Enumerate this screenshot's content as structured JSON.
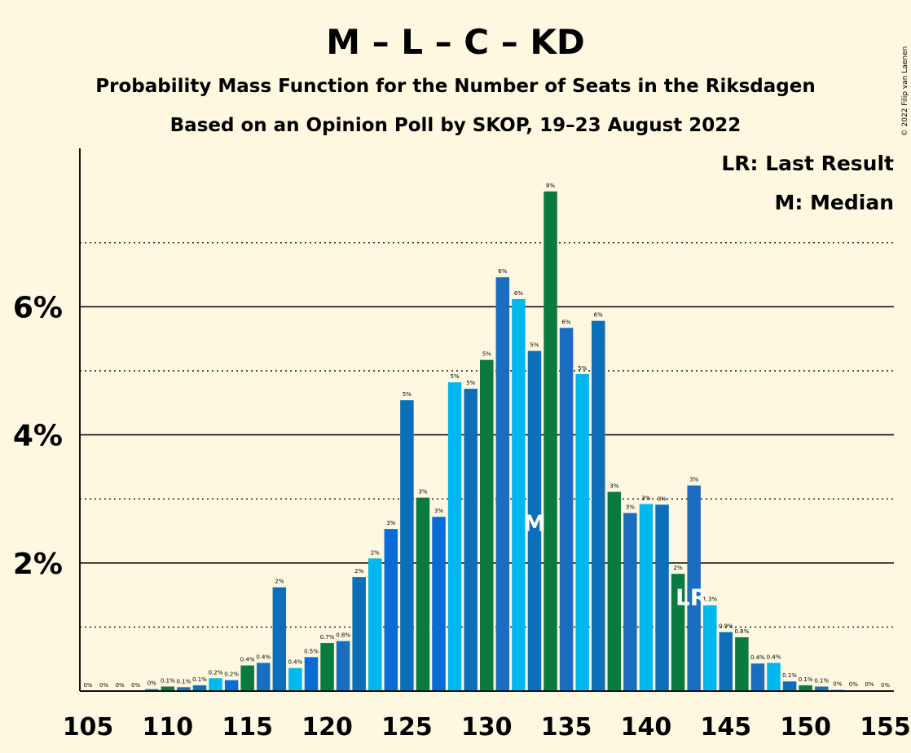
{
  "title": "M – L – C – KD",
  "subtitle1": "Probability Mass Function for the Number of Seats in the Riksdagen",
  "subtitle2": "Based on an Opinion Poll by SKOP, 19–23 August 2022",
  "copyright": "© 2022 Filip van Laenen",
  "legend": {
    "last_result": "LR: Last Result",
    "median": "M: Median"
  },
  "colors": {
    "background": "#fef8e1",
    "palette": [
      "#0b7a3e",
      "#1a6dbf",
      "#0d6fb8",
      "#00b8ee",
      "#0a6bd6"
    ]
  },
  "chart_data": {
    "type": "bar",
    "xlabel": "",
    "ylabel": "",
    "x": [
      105,
      106,
      107,
      108,
      109,
      110,
      111,
      112,
      113,
      114,
      115,
      116,
      117,
      118,
      119,
      120,
      121,
      122,
      123,
      124,
      125,
      126,
      127,
      128,
      129,
      130,
      131,
      132,
      133,
      134,
      135,
      136,
      137,
      138,
      139,
      140,
      141,
      142,
      143,
      144,
      145,
      146,
      147,
      148,
      149,
      150,
      151,
      152,
      153,
      154,
      155
    ],
    "values": [
      0.0,
      0.0,
      0.0,
      0.0,
      0.03,
      0.07,
      0.06,
      0.09,
      0.2,
      0.17,
      0.4,
      0.44,
      1.62,
      0.36,
      0.53,
      0.75,
      0.78,
      1.78,
      2.07,
      2.53,
      4.54,
      3.02,
      2.72,
      4.82,
      4.72,
      5.17,
      6.46,
      6.12,
      5.31,
      7.8,
      5.67,
      4.95,
      5.78,
      3.11,
      2.78,
      2.92,
      2.91,
      1.83,
      3.21,
      1.34,
      0.92,
      0.84,
      0.43,
      0.44,
      0.15,
      0.09,
      0.07,
      0.02,
      0.01,
      0.01,
      0.0
    ],
    "labels": [
      "0%",
      "0%",
      "0%",
      "0%",
      "0%",
      "0.1%",
      "0.1%",
      "0.1%",
      "0.2%",
      "0.2%",
      "0.4%",
      "0.4%",
      "2%",
      "0.4%",
      "0.5%",
      "0.7%",
      "0.8%",
      "2%",
      "2%",
      "3%",
      "5%",
      "3%",
      "3%",
      "5%",
      "5%",
      "5%",
      "6%",
      "6%",
      "5%",
      "8%",
      "6%",
      "5%",
      "6%",
      "3%",
      "3%",
      "3%",
      "3%",
      "2%",
      "3%",
      "1.3%",
      "0.9%",
      "0.8%",
      "0.4%",
      "0.4%",
      "0.1%",
      "0.1%",
      "0.1%",
      "0%",
      "0%",
      "0%",
      "0%"
    ],
    "color_index": [
      0,
      1,
      2,
      3,
      4,
      0,
      1,
      2,
      3,
      4,
      0,
      1,
      2,
      3,
      4,
      0,
      1,
      2,
      3,
      4,
      2,
      0,
      4,
      3,
      2,
      0,
      1,
      3,
      2,
      0,
      1,
      3,
      2,
      0,
      1,
      3,
      2,
      0,
      1,
      3,
      2,
      0,
      1,
      3,
      2,
      0,
      1,
      3,
      2,
      0,
      1
    ],
    "x_ticks": [
      "105",
      "110",
      "115",
      "120",
      "125",
      "130",
      "135",
      "140",
      "145",
      "150",
      "155"
    ],
    "y_ticks": [
      "2%",
      "4%",
      "6%"
    ],
    "ylim": [
      0,
      8
    ],
    "median": 133,
    "median_label": "M",
    "last_result": 143,
    "last_result_label": "LR",
    "grid": "solid major at 2%, dotted minor at 1%"
  }
}
